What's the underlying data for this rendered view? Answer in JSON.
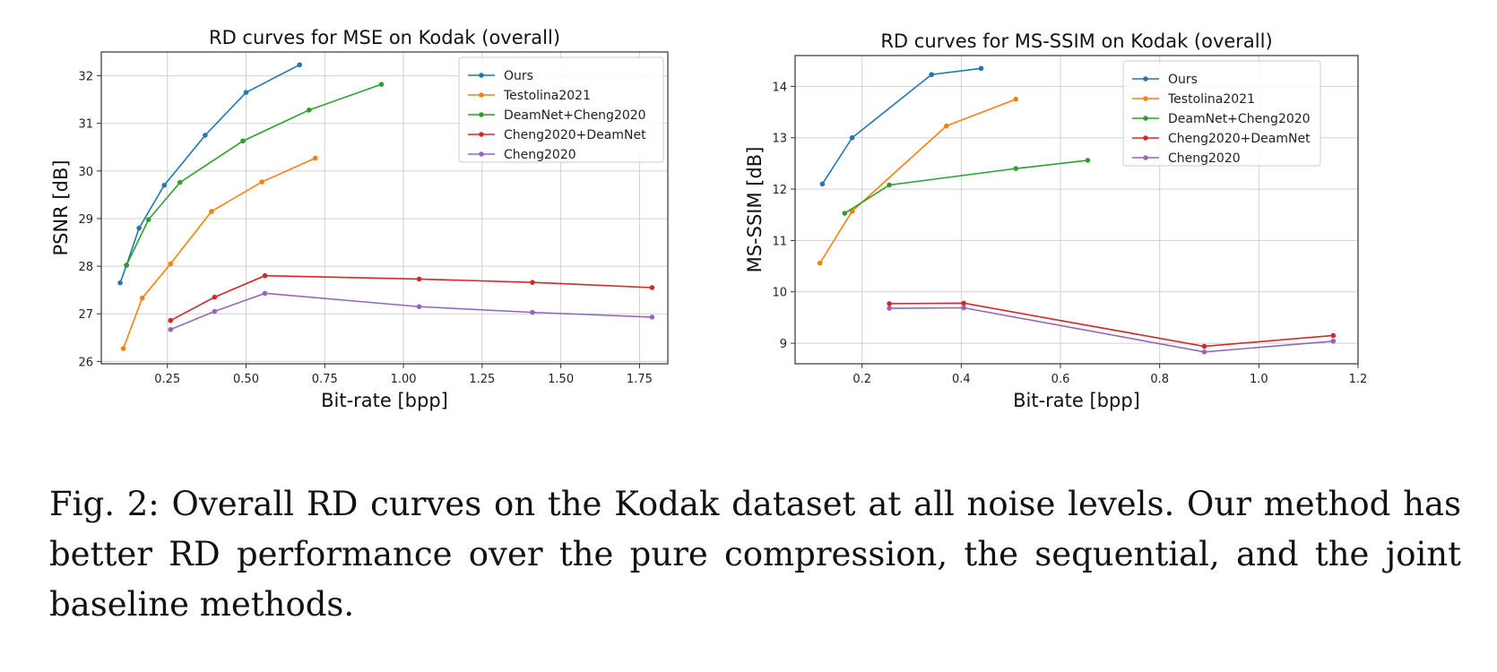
{
  "chart_data": [
    {
      "type": "line",
      "title": "RD curves for MSE on Kodak (overall)",
      "xlabel": "Bit-rate [bpp]",
      "ylabel": "PSNR [dB]",
      "xlim": [
        0.04,
        1.84
      ],
      "ylim": [
        25.95,
        32.5
      ],
      "xticks": [
        0.25,
        0.5,
        0.75,
        1.0,
        1.25,
        1.5,
        1.75
      ],
      "xtick_labels": [
        "0.25",
        "0.50",
        "0.75",
        "1.00",
        "1.25",
        "1.50",
        "1.75"
      ],
      "yticks": [
        26,
        27,
        28,
        29,
        30,
        31,
        32
      ],
      "ytick_labels": [
        "26",
        "27",
        "28",
        "29",
        "30",
        "31",
        "32"
      ],
      "grid": true,
      "legend": "top-right",
      "series": [
        {
          "name": "Ours",
          "color": "#1f77b4",
          "x": [
            0.1,
            0.12,
            0.16,
            0.24,
            0.37,
            0.5,
            0.67
          ],
          "y": [
            27.65,
            28.02,
            28.8,
            29.7,
            30.75,
            31.65,
            32.23
          ]
        },
        {
          "name": "Testolina2021",
          "color": "#ff7f0e",
          "x": [
            0.11,
            0.17,
            0.26,
            0.39,
            0.55,
            0.72
          ],
          "y": [
            26.27,
            27.33,
            28.05,
            29.15,
            29.77,
            30.27
          ]
        },
        {
          "name": "DeamNet+Cheng2020",
          "color": "#2ca02c",
          "x": [
            0.12,
            0.19,
            0.29,
            0.49,
            0.7,
            0.93
          ],
          "y": [
            28.02,
            28.98,
            29.76,
            30.63,
            31.28,
            31.82
          ]
        },
        {
          "name": "Cheng2020+DeamNet",
          "color": "#d62728",
          "x": [
            0.26,
            0.4,
            0.56,
            1.05,
            1.41,
            1.79
          ],
          "y": [
            26.86,
            27.35,
            27.8,
            27.73,
            27.66,
            27.55
          ]
        },
        {
          "name": "Cheng2020",
          "color": "#9467bd",
          "x": [
            0.26,
            0.4,
            0.56,
            1.05,
            1.41,
            1.79
          ],
          "y": [
            26.67,
            27.05,
            27.43,
            27.15,
            27.03,
            26.93
          ]
        }
      ]
    },
    {
      "type": "line",
      "title": "RD curves for MS-SSIM on Kodak (overall)",
      "xlabel": "Bit-rate [bpp]",
      "ylabel": "MS-SSIM [dB]",
      "xlim": [
        0.065,
        1.2
      ],
      "ylim": [
        8.6,
        14.6
      ],
      "xticks": [
        0.2,
        0.4,
        0.6,
        0.8,
        1.0,
        1.2
      ],
      "xtick_labels": [
        "0.2",
        "0.4",
        "0.6",
        "0.8",
        "1.0",
        "1.2"
      ],
      "yticks": [
        9,
        10,
        11,
        12,
        13,
        14
      ],
      "ytick_labels": [
        "9",
        "10",
        "11",
        "12",
        "13",
        "14"
      ],
      "grid": true,
      "legend": "top-right",
      "series": [
        {
          "name": "Ours",
          "color": "#1f77b4",
          "x": [
            0.12,
            0.18,
            0.34,
            0.44
          ],
          "y": [
            12.1,
            13.0,
            14.23,
            14.35
          ]
        },
        {
          "name": "Testolina2021",
          "color": "#ff7f0e",
          "x": [
            0.115,
            0.18,
            0.37,
            0.51
          ],
          "y": [
            10.56,
            11.57,
            13.23,
            13.75
          ]
        },
        {
          "name": "DeamNet+Cheng2020",
          "color": "#2ca02c",
          "x": [
            0.165,
            0.255,
            0.51,
            0.655
          ],
          "y": [
            11.53,
            12.08,
            12.4,
            12.56
          ]
        },
        {
          "name": "Cheng2020+DeamNet",
          "color": "#d62728",
          "x": [
            0.255,
            0.405,
            0.89,
            1.15
          ],
          "y": [
            9.77,
            9.78,
            8.94,
            9.15
          ]
        },
        {
          "name": "Cheng2020",
          "color": "#9467bd",
          "x": [
            0.255,
            0.405,
            0.89,
            1.15
          ],
          "y": [
            9.68,
            9.69,
            8.83,
            9.04
          ]
        }
      ]
    }
  ],
  "caption": "Fig. 2: Overall RD curves on the Kodak dataset at all noise levels. Our method has better RD performance over the pure compression, the sequential, and the joint baseline methods."
}
